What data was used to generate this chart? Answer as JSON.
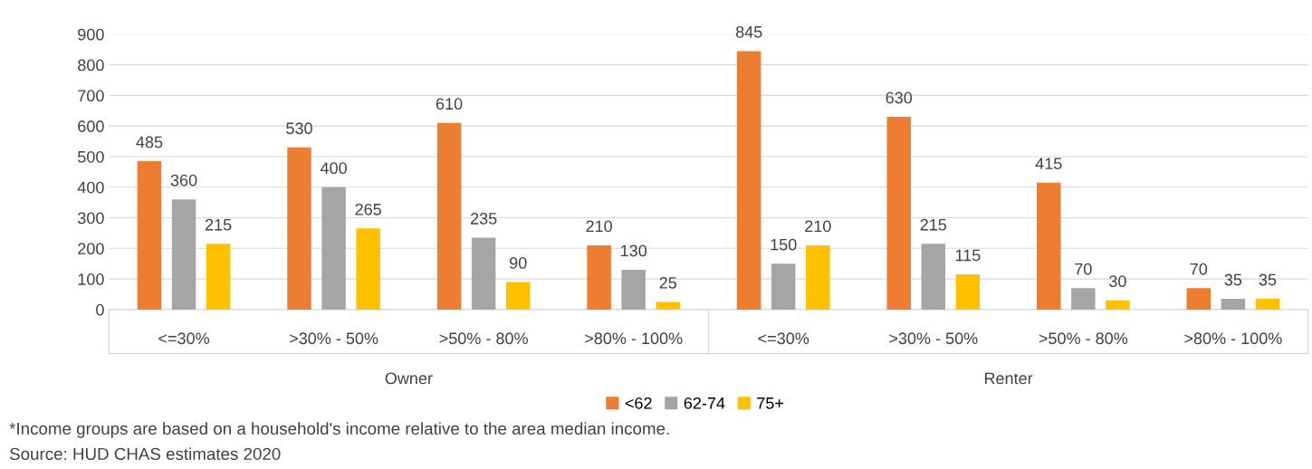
{
  "chart_data": {
    "type": "bar",
    "categories": [
      "<=30%",
      ">30% - 50%",
      ">50% - 80%",
      ">80% - 100%",
      "<=30%",
      ">30% - 50%",
      ">50% - 80%",
      ">80% - 100%"
    ],
    "series": [
      {
        "name": "<62",
        "color": "#ed7d31",
        "values": [
          485,
          530,
          610,
          210,
          845,
          630,
          415,
          70
        ]
      },
      {
        "name": "62-74",
        "color": "#a5a5a5",
        "values": [
          360,
          400,
          235,
          130,
          150,
          215,
          70,
          35
        ]
      },
      {
        "name": "75+",
        "color": "#ffc000",
        "values": [
          215,
          265,
          90,
          25,
          210,
          115,
          30,
          35
        ]
      }
    ],
    "ylim": [
      0,
      900
    ],
    "yticks": [
      0,
      100,
      200,
      300,
      400,
      500,
      600,
      700,
      800,
      900
    ],
    "grid": "y",
    "legend": "bottom",
    "data_labels": true,
    "annotations": [
      "Owner",
      "Renter",
      "*Income groups are based on a household's income relative to the area median income.",
      "Source: HUD CHAS estimates 2020"
    ]
  }
}
